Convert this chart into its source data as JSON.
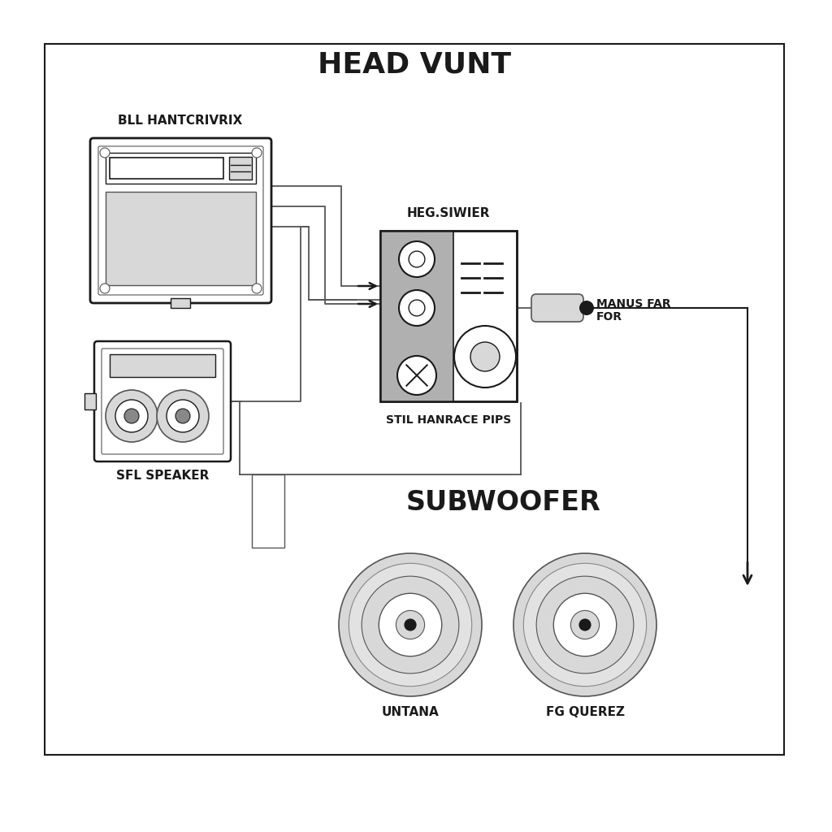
{
  "title": "HEAD VUNT",
  "subwoofer_label": "SUBWOOFER",
  "head_unit_label": "BLL HANTCRIVRIX",
  "amplifier_label": "HEG.SIWIER",
  "amp_sub_label": "STIL HANRACE PIPS",
  "speaker_label": "SFL SPEAKER",
  "manus_label": "MANUS FAR\nFOR",
  "sub1_label": "UNTANA",
  "sub2_label": "FG QUEREZ",
  "bg_color": "#ffffff",
  "dark_color": "#1a1a1a",
  "line_color": "#555555",
  "gray_color": "#aaaaaa",
  "light_gray": "#d8d8d8",
  "med_gray": "#888888",
  "amp_gray": "#b0b0b0"
}
